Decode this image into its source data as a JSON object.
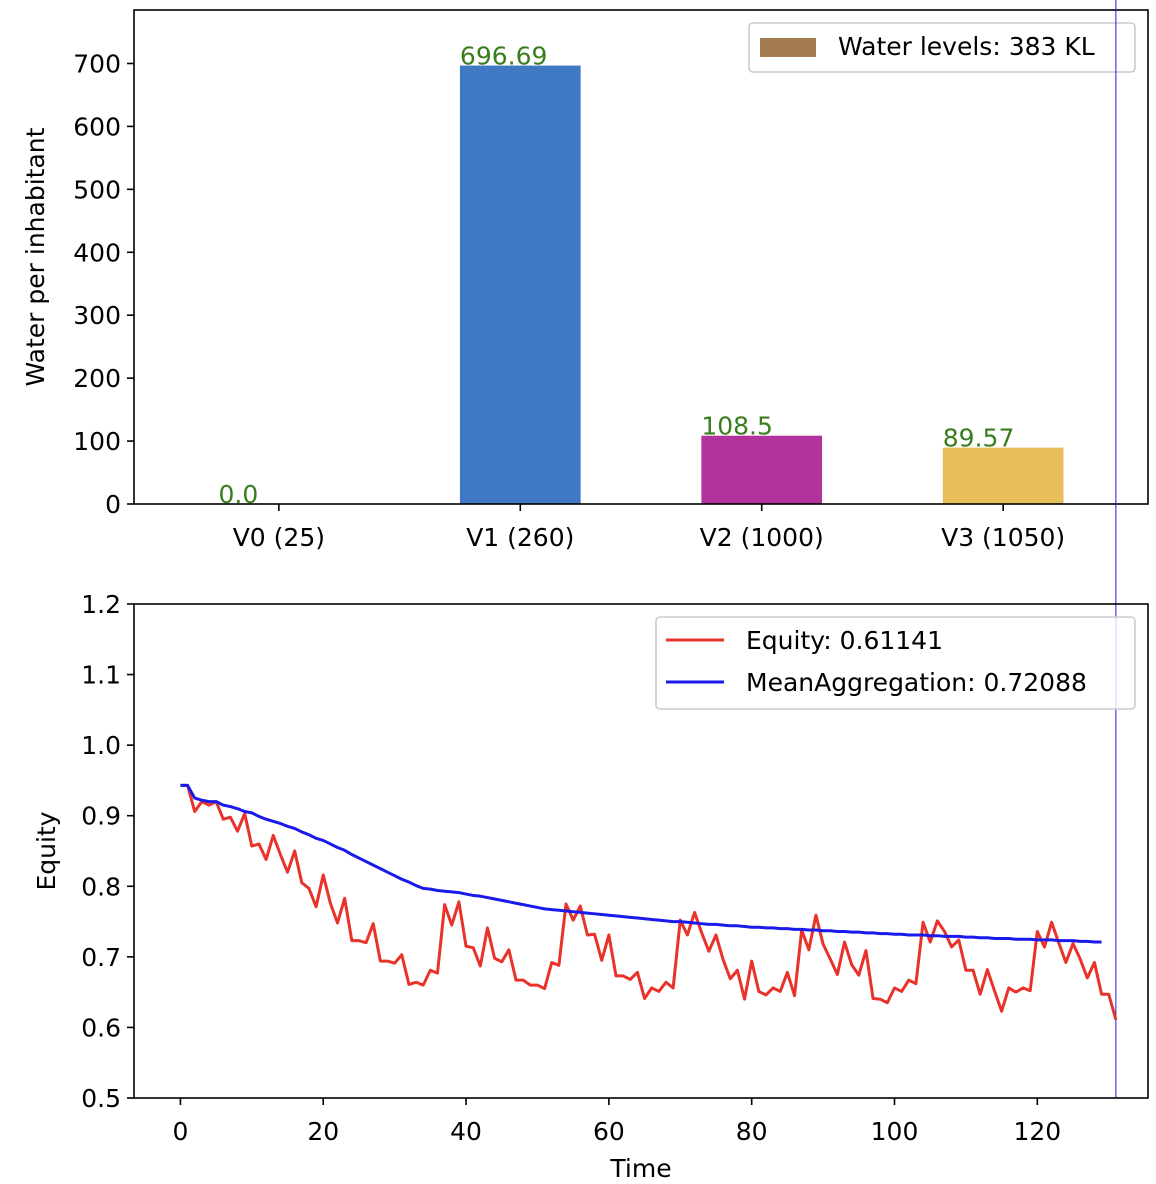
{
  "chart_data": [
    {
      "type": "bar",
      "categories": [
        "V0 (25)",
        "V1 (260)",
        "V2 (1000)",
        "V3 (1050)"
      ],
      "values": [
        0.0,
        696.69,
        108.5,
        89.57
      ],
      "value_labels": [
        "0.0",
        "696.69",
        "108.5",
        "89.57"
      ],
      "colors": [
        "#3f79c4",
        "#3f79c4",
        "#b2339c",
        "#e6bf5a"
      ],
      "label_color": "#3a7d1e",
      "title": "",
      "xlabel": "",
      "ylabel": "Water per inhabitant",
      "ylim": [
        0,
        785
      ],
      "yticks": [
        0,
        100,
        200,
        300,
        400,
        500,
        600,
        700
      ],
      "legend": {
        "label": "Water levels: 383 KL",
        "color": "#a47c52",
        "placement": "top-right"
      },
      "grid": false
    },
    {
      "type": "line",
      "title": "",
      "xlabel": "Time",
      "ylabel": "Equity",
      "xlim": [
        -6.5,
        135.5
      ],
      "ylim": [
        0.5,
        1.2
      ],
      "xticks": [
        0,
        20,
        40,
        60,
        80,
        100,
        120
      ],
      "yticks": [
        0.5,
        0.6,
        0.7,
        0.8,
        0.9,
        1.0,
        1.1,
        1.2
      ],
      "ytick_labels": [
        "0.5",
        "0.6",
        "0.7",
        "0.8",
        "0.9",
        "1.0",
        "1.1",
        "1.2"
      ],
      "legend": {
        "placement": "top-right"
      },
      "grid": false,
      "series": [
        {
          "name": "Equity: 0.61141",
          "color": "#e8322a",
          "values": [
            0.943,
            0.943,
            0.906,
            0.92,
            0.915,
            0.92,
            0.895,
            0.898,
            0.878,
            0.903,
            0.857,
            0.86,
            0.838,
            0.872,
            0.845,
            0.82,
            0.85,
            0.805,
            0.797,
            0.771,
            0.816,
            0.776,
            0.748,
            0.783,
            0.723,
            0.723,
            0.72,
            0.747,
            0.694,
            0.694,
            0.691,
            0.703,
            0.661,
            0.664,
            0.66,
            0.681,
            0.677,
            0.774,
            0.745,
            0.778,
            0.715,
            0.713,
            0.687,
            0.741,
            0.698,
            0.693,
            0.71,
            0.667,
            0.667,
            0.66,
            0.66,
            0.655,
            0.692,
            0.688,
            0.775,
            0.752,
            0.772,
            0.731,
            0.732,
            0.695,
            0.731,
            0.673,
            0.673,
            0.668,
            0.678,
            0.641,
            0.656,
            0.651,
            0.664,
            0.656,
            0.752,
            0.731,
            0.763,
            0.734,
            0.708,
            0.731,
            0.696,
            0.669,
            0.681,
            0.64,
            0.694,
            0.651,
            0.646,
            0.656,
            0.651,
            0.678,
            0.645,
            0.738,
            0.71,
            0.759,
            0.718,
            0.697,
            0.675,
            0.721,
            0.689,
            0.674,
            0.709,
            0.641,
            0.64,
            0.635,
            0.656,
            0.651,
            0.667,
            0.662,
            0.749,
            0.721,
            0.751,
            0.736,
            0.714,
            0.724,
            0.681,
            0.681,
            0.647,
            0.682,
            0.652,
            0.623,
            0.656,
            0.65,
            0.656,
            0.652,
            0.736,
            0.714,
            0.749,
            0.72,
            0.692,
            0.719,
            0.697,
            0.67,
            0.692,
            0.647,
            0.647,
            0.611
          ]
        },
        {
          "name": "MeanAggregation: 0.72088",
          "color": "#1a1aeb",
          "values": [
            0.943,
            0.943,
            0.925,
            0.922,
            0.92,
            0.92,
            0.915,
            0.913,
            0.91,
            0.906,
            0.904,
            0.899,
            0.895,
            0.892,
            0.889,
            0.885,
            0.882,
            0.877,
            0.873,
            0.868,
            0.865,
            0.86,
            0.855,
            0.851,
            0.845,
            0.84,
            0.835,
            0.83,
            0.825,
            0.82,
            0.815,
            0.81,
            0.806,
            0.801,
            0.797,
            0.796,
            0.794,
            0.793,
            0.792,
            0.791,
            0.789,
            0.787,
            0.786,
            0.784,
            0.782,
            0.78,
            0.778,
            0.776,
            0.774,
            0.772,
            0.77,
            0.768,
            0.767,
            0.766,
            0.765,
            0.764,
            0.763,
            0.762,
            0.761,
            0.76,
            0.759,
            0.758,
            0.757,
            0.756,
            0.755,
            0.754,
            0.753,
            0.752,
            0.751,
            0.75,
            0.75,
            0.749,
            0.748,
            0.747,
            0.746,
            0.746,
            0.745,
            0.744,
            0.744,
            0.743,
            0.742,
            0.742,
            0.741,
            0.741,
            0.74,
            0.74,
            0.739,
            0.739,
            0.738,
            0.738,
            0.737,
            0.737,
            0.736,
            0.736,
            0.735,
            0.735,
            0.734,
            0.734,
            0.733,
            0.733,
            0.732,
            0.732,
            0.731,
            0.731,
            0.731,
            0.73,
            0.73,
            0.729,
            0.729,
            0.729,
            0.728,
            0.728,
            0.727,
            0.727,
            0.726,
            0.726,
            0.726,
            0.725,
            0.725,
            0.725,
            0.724,
            0.724,
            0.724,
            0.723,
            0.723,
            0.723,
            0.722,
            0.722,
            0.721,
            0.721
          ]
        }
      ]
    }
  ]
}
